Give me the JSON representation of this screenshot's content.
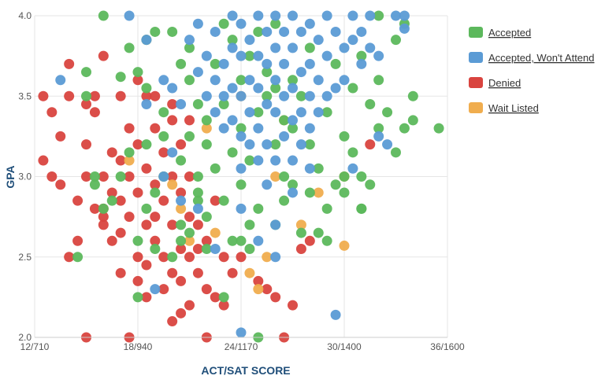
{
  "chart_data": {
    "type": "scatter",
    "title": "",
    "xlabel": "ACT/SAT SCORE",
    "ylabel": "GPA",
    "x_ticks": [
      "12/710",
      "18/940",
      "24/1170",
      "30/1400",
      "36/1600"
    ],
    "y_ticks": [
      "2.0",
      "2.5",
      "3.0",
      "3.5",
      "4.0"
    ],
    "xlim": [
      12,
      36
    ],
    "ylim": [
      2.0,
      4.0
    ],
    "x_unit": "ACT score (paired SAT shown in tick labels)",
    "grid": true,
    "legend_position": "top-right",
    "series": [
      {
        "name": "Accepted",
        "color": "#5cb85c",
        "points": [
          [
            16,
            4.0
          ],
          [
            17.5,
            3.8
          ],
          [
            18.5,
            3.85
          ],
          [
            19,
            3.9
          ],
          [
            17,
            3.62
          ],
          [
            18,
            3.65
          ],
          [
            15,
            3.65
          ],
          [
            15,
            3.5
          ],
          [
            18.5,
            3.55
          ],
          [
            19.5,
            3.4
          ],
          [
            20,
            3.9
          ],
          [
            20.5,
            3.7
          ],
          [
            21,
            3.6
          ],
          [
            21,
            3.8
          ],
          [
            21.5,
            3.45
          ],
          [
            21,
            3.25
          ],
          [
            20.5,
            3.1
          ],
          [
            21.5,
            3.0
          ],
          [
            21.5,
            2.85
          ],
          [
            21,
            2.65
          ],
          [
            20.5,
            2.6
          ],
          [
            22,
            2.55
          ],
          [
            21.5,
            2.9
          ],
          [
            22,
            3.2
          ],
          [
            22.5,
            3.7
          ],
          [
            23,
            3.95
          ],
          [
            23.5,
            3.85
          ],
          [
            23,
            3.45
          ],
          [
            23.5,
            3.15
          ],
          [
            23,
            2.85
          ],
          [
            23.5,
            2.6
          ],
          [
            23,
            2.25
          ],
          [
            24,
            3.6
          ],
          [
            24.5,
            3.75
          ],
          [
            24,
            3.3
          ],
          [
            24.5,
            3.1
          ],
          [
            24,
            2.95
          ],
          [
            24.5,
            2.7
          ],
          [
            24.5,
            2.55
          ],
          [
            25,
            2.8
          ],
          [
            25,
            3.4
          ],
          [
            25.5,
            3.65
          ],
          [
            25,
            3.9
          ],
          [
            26,
            3.55
          ],
          [
            26,
            3.2
          ],
          [
            26.5,
            3.0
          ],
          [
            26,
            2.7
          ],
          [
            26.5,
            2.85
          ],
          [
            27,
            3.3
          ],
          [
            27,
            2.95
          ],
          [
            27.5,
            3.5
          ],
          [
            27.5,
            2.65
          ],
          [
            28,
            3.2
          ],
          [
            28,
            2.9
          ],
          [
            28.5,
            3.05
          ],
          [
            29,
            3.4
          ],
          [
            29,
            2.8
          ],
          [
            29,
            2.6
          ],
          [
            29.5,
            3.7
          ],
          [
            29.5,
            2.95
          ],
          [
            30,
            3.25
          ],
          [
            30,
            2.9
          ],
          [
            30.5,
            3.55
          ],
          [
            30.5,
            3.15
          ],
          [
            31,
            3.75
          ],
          [
            31,
            2.8
          ],
          [
            31,
            3.0
          ],
          [
            31.5,
            3.45
          ],
          [
            31.5,
            2.95
          ],
          [
            32,
            3.6
          ],
          [
            32,
            3.3
          ],
          [
            32,
            4.0
          ],
          [
            32.5,
            3.4
          ],
          [
            33,
            3.15
          ],
          [
            33,
            3.85
          ],
          [
            33.5,
            3.3
          ],
          [
            34,
            3.5
          ],
          [
            34,
            3.35
          ],
          [
            33.5,
            3.95
          ],
          [
            35.5,
            3.3
          ],
          [
            18,
            2.25
          ],
          [
            18.5,
            2.8
          ],
          [
            19,
            2.9
          ],
          [
            19.5,
            3.0
          ],
          [
            16,
            2.8
          ],
          [
            15.5,
            2.95
          ],
          [
            17,
            3.0
          ],
          [
            17.5,
            3.15
          ],
          [
            18.5,
            3.2
          ],
          [
            19.5,
            3.25
          ],
          [
            18,
            2.6
          ],
          [
            19,
            2.55
          ],
          [
            20,
            2.5
          ],
          [
            20.5,
            2.7
          ],
          [
            22,
            2.75
          ],
          [
            22,
            3.35
          ],
          [
            22.5,
            3.05
          ],
          [
            25,
            2.0
          ],
          [
            24,
            2.6
          ],
          [
            26,
            3.95
          ],
          [
            28,
            3.8
          ],
          [
            27,
            3.6
          ],
          [
            25.5,
            3.5
          ],
          [
            26.5,
            3.35
          ],
          [
            14.5,
            2.5
          ],
          [
            16.5,
            2.85
          ],
          [
            15.5,
            3.0
          ],
          [
            30,
            3.0
          ],
          [
            31,
            2.8
          ],
          [
            28.5,
            2.65
          ]
        ]
      },
      {
        "name": "Accepted, Won't Attend",
        "color": "#5b9bd5",
        "points": [
          [
            17.5,
            4.0
          ],
          [
            13.5,
            3.6
          ],
          [
            18.5,
            3.85
          ],
          [
            19.5,
            3.6
          ],
          [
            20,
            3.55
          ],
          [
            20.5,
            3.45
          ],
          [
            21,
            3.85
          ],
          [
            21.5,
            3.95
          ],
          [
            21.5,
            3.65
          ],
          [
            22,
            3.75
          ],
          [
            22,
            3.5
          ],
          [
            22.5,
            3.9
          ],
          [
            22.5,
            3.6
          ],
          [
            22.5,
            3.4
          ],
          [
            23,
            3.7
          ],
          [
            23,
            3.5
          ],
          [
            23,
            3.3
          ],
          [
            23.5,
            4.0
          ],
          [
            23.5,
            3.8
          ],
          [
            23.5,
            3.55
          ],
          [
            23.5,
            3.35
          ],
          [
            24,
            3.95
          ],
          [
            24,
            3.75
          ],
          [
            24,
            3.5
          ],
          [
            24,
            3.25
          ],
          [
            24,
            3.05
          ],
          [
            24.5,
            3.85
          ],
          [
            24.5,
            3.6
          ],
          [
            24.5,
            3.4
          ],
          [
            24.5,
            3.2
          ],
          [
            25,
            4.0
          ],
          [
            25,
            3.75
          ],
          [
            25,
            3.55
          ],
          [
            25,
            3.3
          ],
          [
            25,
            3.1
          ],
          [
            25.5,
            3.9
          ],
          [
            25.5,
            3.7
          ],
          [
            25.5,
            3.45
          ],
          [
            25.5,
            3.2
          ],
          [
            25.5,
            2.95
          ],
          [
            26,
            4.0
          ],
          [
            26,
            3.8
          ],
          [
            26,
            3.6
          ],
          [
            26,
            3.4
          ],
          [
            26,
            3.1
          ],
          [
            26.5,
            3.9
          ],
          [
            26.5,
            3.7
          ],
          [
            26.5,
            3.5
          ],
          [
            26.5,
            3.25
          ],
          [
            27,
            4.0
          ],
          [
            27,
            3.8
          ],
          [
            27,
            3.55
          ],
          [
            27,
            3.35
          ],
          [
            27,
            3.1
          ],
          [
            27.5,
            3.9
          ],
          [
            27.5,
            3.65
          ],
          [
            27.5,
            3.4
          ],
          [
            27.5,
            3.2
          ],
          [
            28,
            3.95
          ],
          [
            28,
            3.7
          ],
          [
            28,
            3.5
          ],
          [
            28,
            3.3
          ],
          [
            28.5,
            3.85
          ],
          [
            28.5,
            3.6
          ],
          [
            28.5,
            3.4
          ],
          [
            29,
            4.0
          ],
          [
            29,
            3.75
          ],
          [
            29,
            3.5
          ],
          [
            29.5,
            3.9
          ],
          [
            29.5,
            3.55
          ],
          [
            30,
            3.8
          ],
          [
            30,
            3.6
          ],
          [
            30.5,
            4.0
          ],
          [
            30.5,
            3.85
          ],
          [
            31,
            3.9
          ],
          [
            31,
            3.7
          ],
          [
            31.5,
            4.0
          ],
          [
            31.5,
            3.8
          ],
          [
            32,
            3.75
          ],
          [
            33,
            4.0
          ],
          [
            33.5,
            4.0
          ],
          [
            33.5,
            3.92
          ],
          [
            32,
            3.25
          ],
          [
            32.5,
            3.2
          ],
          [
            30.5,
            3.05
          ],
          [
            29.5,
            2.14
          ],
          [
            24,
            2.03
          ],
          [
            26,
            2.5
          ],
          [
            24,
            2.8
          ],
          [
            22.5,
            2.55
          ],
          [
            21.5,
            2.8
          ],
          [
            20.5,
            2.85
          ],
          [
            19,
            2.3
          ],
          [
            18.5,
            3.45
          ],
          [
            19.5,
            3.0
          ],
          [
            20,
            3.15
          ],
          [
            26,
            2.7
          ],
          [
            27,
            2.9
          ],
          [
            28,
            3.05
          ],
          [
            25,
            2.6
          ]
        ]
      },
      {
        "name": "Denied",
        "color": "#d9443f",
        "points": [
          [
            12.5,
            3.5
          ],
          [
            12.5,
            3.1
          ],
          [
            13,
            3.4
          ],
          [
            13.5,
            3.25
          ],
          [
            13.5,
            2.95
          ],
          [
            14,
            3.7
          ],
          [
            14,
            2.5
          ],
          [
            14.5,
            2.85
          ],
          [
            14.5,
            2.6
          ],
          [
            15,
            3.45
          ],
          [
            15,
            3.2
          ],
          [
            15,
            3.0
          ],
          [
            15,
            2.0
          ],
          [
            15.5,
            3.4
          ],
          [
            15.5,
            3.5
          ],
          [
            16,
            2.8
          ],
          [
            16,
            2.7
          ],
          [
            16,
            3.75
          ],
          [
            16,
            3.0
          ],
          [
            16.5,
            3.15
          ],
          [
            16.5,
            2.6
          ],
          [
            17,
            3.5
          ],
          [
            17,
            2.85
          ],
          [
            17,
            2.4
          ],
          [
            17.5,
            3.3
          ],
          [
            17.5,
            3.0
          ],
          [
            17.5,
            2.75
          ],
          [
            17.5,
            2.0
          ],
          [
            18,
            3.6
          ],
          [
            18,
            3.2
          ],
          [
            18,
            2.9
          ],
          [
            18,
            2.5
          ],
          [
            18,
            2.35
          ],
          [
            18.5,
            3.5
          ],
          [
            18.5,
            3.05
          ],
          [
            18.5,
            2.7
          ],
          [
            18.5,
            2.45
          ],
          [
            19,
            3.3
          ],
          [
            19,
            2.95
          ],
          [
            19,
            2.6
          ],
          [
            19.5,
            3.15
          ],
          [
            19.5,
            2.85
          ],
          [
            19.5,
            2.5
          ],
          [
            19.5,
            2.3
          ],
          [
            20,
            3.35
          ],
          [
            20,
            3.0
          ],
          [
            20,
            2.7
          ],
          [
            20,
            2.4
          ],
          [
            20,
            2.1
          ],
          [
            20.5,
            3.2
          ],
          [
            20.5,
            2.9
          ],
          [
            20.5,
            2.55
          ],
          [
            20.5,
            2.15
          ],
          [
            21,
            3.0
          ],
          [
            21,
            2.75
          ],
          [
            21,
            2.5
          ],
          [
            21,
            2.2
          ],
          [
            21.5,
            2.7
          ],
          [
            21.5,
            2.4
          ],
          [
            22,
            2.6
          ],
          [
            22,
            2.3
          ],
          [
            22,
            2.0
          ],
          [
            22.5,
            2.85
          ],
          [
            22.5,
            2.25
          ],
          [
            23,
            2.5
          ],
          [
            23,
            2.2
          ],
          [
            23.5,
            2.4
          ],
          [
            24,
            2.5
          ],
          [
            25,
            2.35
          ],
          [
            25.5,
            2.3
          ],
          [
            26,
            2.25
          ],
          [
            26.5,
            2.0
          ],
          [
            27,
            2.2
          ],
          [
            27.5,
            2.55
          ],
          [
            28,
            2.6
          ],
          [
            31.5,
            3.2
          ],
          [
            14,
            3.5
          ],
          [
            16.5,
            2.9
          ],
          [
            17,
            3.1
          ],
          [
            18.5,
            2.25
          ],
          [
            19,
            2.75
          ],
          [
            20.5,
            2.35
          ],
          [
            21.5,
            2.55
          ],
          [
            13,
            3.0
          ],
          [
            15.5,
            2.8
          ],
          [
            16,
            2.75
          ],
          [
            17,
            2.65
          ],
          [
            19,
            3.5
          ],
          [
            20,
            3.45
          ],
          [
            21,
            3.35
          ]
        ]
      },
      {
        "name": "Wait Listed",
        "color": "#f0ad4e",
        "points": [
          [
            18.5,
            3.85
          ],
          [
            19.5,
            3.0
          ],
          [
            20,
            2.95
          ],
          [
            21,
            2.6
          ],
          [
            22.5,
            2.65
          ],
          [
            24.5,
            2.4
          ],
          [
            25,
            2.3
          ],
          [
            25.5,
            2.5
          ],
          [
            26.5,
            3.35
          ],
          [
            27.5,
            2.7
          ],
          [
            30,
            2.57
          ],
          [
            30,
            3.0
          ],
          [
            24,
            3.5
          ],
          [
            22,
            3.3
          ],
          [
            17.5,
            3.1
          ],
          [
            20.5,
            2.8
          ],
          [
            26,
            3.0
          ],
          [
            28.5,
            2.9
          ]
        ]
      }
    ]
  }
}
